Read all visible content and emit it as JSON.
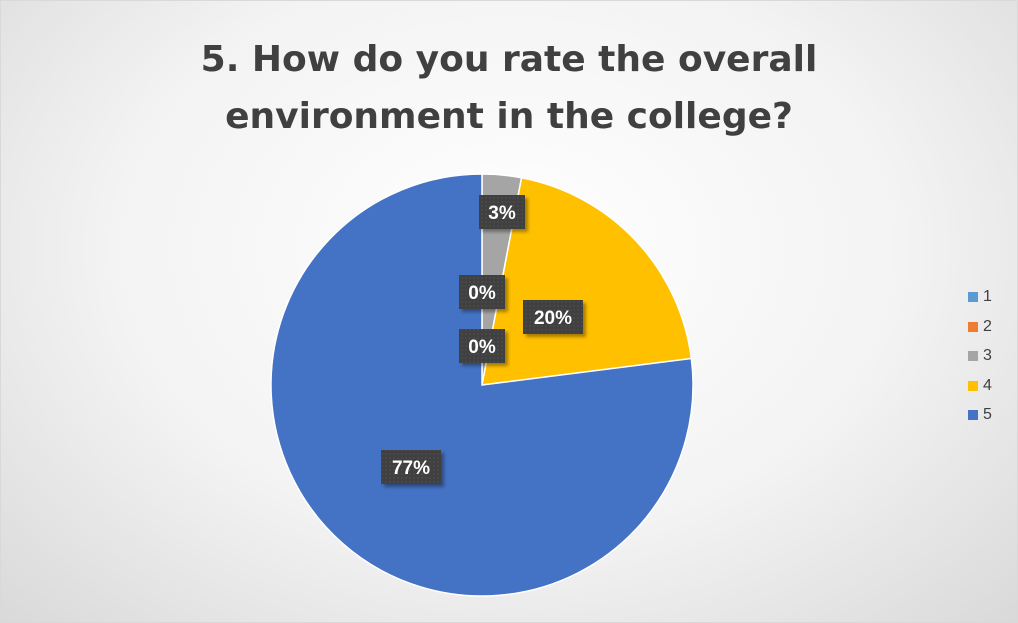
{
  "chart_data": {
    "type": "pie",
    "title": "5. How do you rate the overall environment in the college?",
    "title_lines": [
      "5. How do you rate the overall",
      "environment in the college?"
    ],
    "categories": [
      "1",
      "2",
      "3",
      "4",
      "5"
    ],
    "values": [
      0,
      0,
      3,
      20,
      77
    ],
    "data_labels": [
      "0%",
      "0%",
      "3%",
      "20%",
      "77%"
    ],
    "colors": [
      "#5B9BD5",
      "#ED7D31",
      "#A5A5A5",
      "#FFC000",
      "#4472C4"
    ],
    "legend_position": "right",
    "start_angle": "12 o'clock",
    "direction": "clockwise"
  }
}
